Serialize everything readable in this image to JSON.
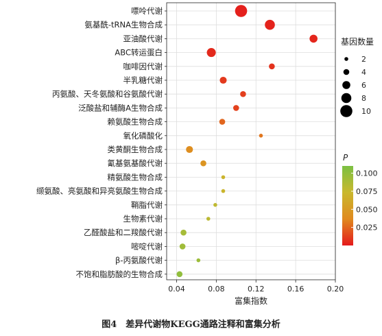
{
  "caption": "图4　差异代谢物KEGG通路注释和富集分析",
  "chart_data": {
    "type": "scatter",
    "xlabel": "富集指数",
    "xlim": [
      0.03,
      0.2
    ],
    "xticks": [
      "0.04",
      "0.08",
      "0.12",
      "0.16",
      "0.20"
    ],
    "xtick_values": [
      0.04,
      0.08,
      0.12,
      0.16,
      0.2
    ],
    "grid": true,
    "size_legend": {
      "title": "基因数量",
      "values": [
        2,
        4,
        6,
        8,
        10
      ],
      "labels": [
        "2",
        "4",
        "6",
        "8",
        "10"
      ]
    },
    "color_legend": {
      "title": "P",
      "range": [
        0.0,
        0.11
      ],
      "ticks": [
        0.025,
        0.05,
        0.075,
        0.1
      ],
      "tick_labels": [
        "0.025",
        "0.050",
        "0.075",
        "0.100"
      ],
      "colors": [
        "#e41a1c",
        "#e08a1f",
        "#c9b82e",
        "#7cc043"
      ]
    },
    "legend_position": "right",
    "points": [
      {
        "pathway": "嘌呤代谢",
        "x": 0.105,
        "size": 10,
        "p": 0.002
      },
      {
        "pathway": "氨基酰-tRNA生物合成",
        "x": 0.134,
        "size": 8,
        "p": 0.003
      },
      {
        "pathway": "亚油酸代谢",
        "x": 0.178,
        "size": 6,
        "p": 0.004
      },
      {
        "pathway": "ABC转运蛋白",
        "x": 0.075,
        "size": 7,
        "p": 0.005
      },
      {
        "pathway": "咖啡因代谢",
        "x": 0.136,
        "size": 4,
        "p": 0.008
      },
      {
        "pathway": "半乳糖代谢",
        "x": 0.087,
        "size": 5,
        "p": 0.01
      },
      {
        "pathway": "丙氨酸、天冬氨酸和谷氨酸代谢",
        "x": 0.107,
        "size": 4,
        "p": 0.012
      },
      {
        "pathway": "泛酸盐和辅酶A生物合成",
        "x": 0.1,
        "size": 4,
        "p": 0.013
      },
      {
        "pathway": "赖氨酸生物合成",
        "x": 0.086,
        "size": 4,
        "p": 0.025
      },
      {
        "pathway": "氧化磷酸化",
        "x": 0.125,
        "size": 2,
        "p": 0.03
      },
      {
        "pathway": "类黄酮生物合成",
        "x": 0.053,
        "size": 5,
        "p": 0.04
      },
      {
        "pathway": "氰基氨基酸代谢",
        "x": 0.067,
        "size": 4,
        "p": 0.045
      },
      {
        "pathway": "精氨酸生物合成",
        "x": 0.087,
        "size": 2,
        "p": 0.07
      },
      {
        "pathway": "缬氨酸、亮氨酸和异亮氨酸生物合成",
        "x": 0.087,
        "size": 2,
        "p": 0.071
      },
      {
        "pathway": "鞘脂代谢",
        "x": 0.079,
        "size": 2,
        "p": 0.078
      },
      {
        "pathway": "生物素代谢",
        "x": 0.072,
        "size": 2,
        "p": 0.08
      },
      {
        "pathway": "乙醛酸盐和二羧酸代谢",
        "x": 0.047,
        "size": 4,
        "p": 0.09
      },
      {
        "pathway": "嘧啶代谢",
        "x": 0.046,
        "size": 4,
        "p": 0.093
      },
      {
        "pathway": "β-丙氨酸代谢",
        "x": 0.062,
        "size": 2,
        "p": 0.095
      },
      {
        "pathway": "不饱和脂肪酸的生物合成",
        "x": 0.043,
        "size": 4,
        "p": 0.1
      }
    ]
  }
}
